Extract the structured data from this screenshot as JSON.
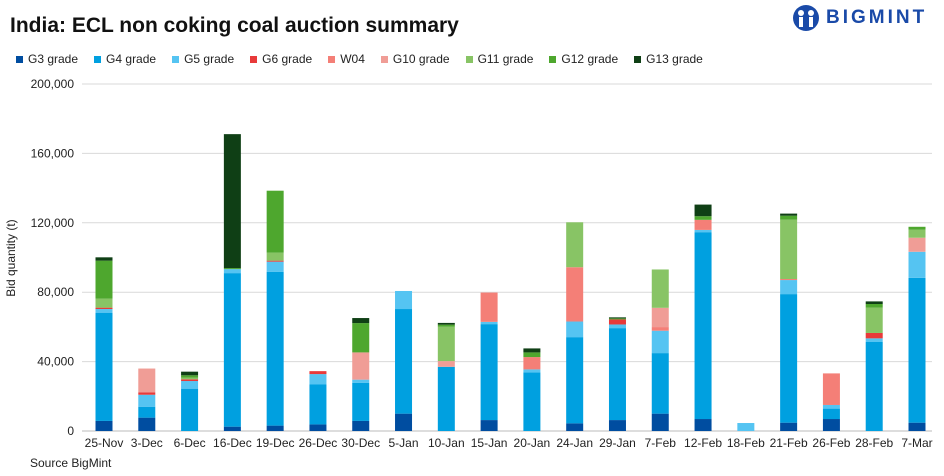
{
  "chart_data": {
    "type": "bar",
    "stacked": true,
    "title": "India: ECL non coking coal auction summary",
    "ylabel": "Bid quantity (t)",
    "xlabel": "",
    "ylim": [
      0,
      200000
    ],
    "yticks": [
      "0",
      "40,000",
      "80,000",
      "120,000",
      "160,000",
      "200,000"
    ],
    "grid": true,
    "legend_position": "top",
    "categories": [
      "25-Nov",
      "3-Dec",
      "6-Dec",
      "16-Dec",
      "19-Dec",
      "26-Dec",
      "30-Dec",
      "5-Jan",
      "10-Jan",
      "15-Jan",
      "20-Jan",
      "24-Jan",
      "29-Jan",
      "7-Feb",
      "12-Feb",
      "18-Feb",
      "21-Feb",
      "26-Feb",
      "28-Feb",
      "7-Mar"
    ],
    "series": [
      {
        "name": "G3 grade",
        "color": "#004da0",
        "values": [
          5800,
          7700,
          0,
          2500,
          3100,
          3800,
          5800,
          10000,
          0,
          6300,
          0,
          4400,
          6300,
          10000,
          6900,
          0,
          4800,
          6900,
          0,
          4800
        ]
      },
      {
        "name": "G4 grade",
        "color": "#00a0e0",
        "values": [
          62400,
          6300,
          24400,
          88500,
          88700,
          23000,
          21900,
          60300,
          37000,
          55300,
          33800,
          49700,
          53000,
          34900,
          107700,
          0,
          74100,
          6000,
          51300,
          83500
        ]
      },
      {
        "name": "G5 grade",
        "color": "#55c4f2",
        "values": [
          2100,
          6900,
          4400,
          2300,
          5800,
          6000,
          1900,
          10400,
          0,
          1300,
          1700,
          9000,
          2100,
          12900,
          1300,
          4600,
          8100,
          2100,
          2100,
          15000
        ]
      },
      {
        "name": "G6 grade",
        "color": "#e83a3a",
        "values": [
          800,
          1300,
          1000,
          0,
          600,
          1700,
          0,
          0,
          0,
          0,
          0,
          0,
          2900,
          0,
          0,
          0,
          0,
          0,
          3100,
          0
        ]
      },
      {
        "name": "W04",
        "color": "#f47f77",
        "values": [
          0,
          0,
          0,
          0,
          0,
          0,
          0,
          0,
          0,
          16900,
          7100,
          31300,
          0,
          2100,
          5800,
          0,
          600,
          18200,
          0,
          0
        ]
      },
      {
        "name": "G10 grade",
        "color": "#f09d96",
        "values": [
          0,
          13800,
          0,
          0,
          0,
          0,
          15700,
          0,
          3300,
          0,
          0,
          0,
          0,
          11100,
          0,
          0,
          0,
          0,
          0,
          8100
        ]
      },
      {
        "name": "G11 grade",
        "color": "#88c465",
        "values": [
          5200,
          0,
          1000,
          0,
          4600,
          0,
          0,
          0,
          19800,
          0,
          0,
          25900,
          0,
          22100,
          0,
          0,
          34200,
          0,
          14600,
          4600
        ]
      },
      {
        "name": "G12 grade",
        "color": "#4ea72e",
        "values": [
          21900,
          0,
          1300,
          600,
          35700,
          0,
          16900,
          0,
          1200,
          0,
          2700,
          0,
          600,
          0,
          2100,
          0,
          2300,
          0,
          2100,
          1700
        ]
      },
      {
        "name": "G13 grade",
        "color": "#0f3f15",
        "values": [
          1900,
          0,
          2100,
          77200,
          0,
          0,
          2900,
          0,
          1000,
          0,
          2300,
          0,
          600,
          0,
          6700,
          0,
          1200,
          0,
          1500,
          0
        ]
      }
    ]
  },
  "logo_text": "BIGMINT",
  "source": "Source BigMint"
}
